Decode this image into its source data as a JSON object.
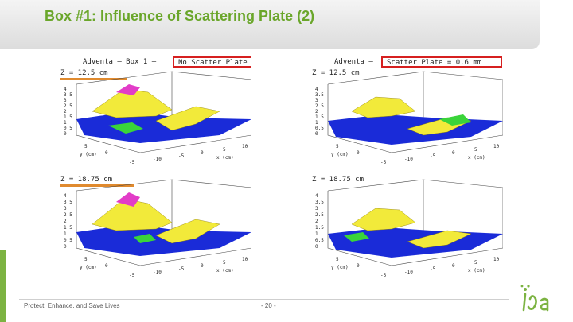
{
  "slide": {
    "title": "Box #1: Influence of Scattering Plate (2)",
    "footer_text": "Protect, Enhance, and Save Lives",
    "page_number": "- 20 -"
  },
  "panels": [
    {
      "header_prefix": "Adventa — Box 1 —",
      "header_highlight": "No Scatter Plate",
      "z_label": "Z = 12.5 cm"
    },
    {
      "header_prefix": "Adventa —",
      "header_highlight": "Scatter Plate = 0.6 mm",
      "z_label": "Z = 12.5 cm"
    },
    {
      "header_prefix": "",
      "header_highlight": "",
      "z_label": "Z = 18.75 cm"
    },
    {
      "header_prefix": "",
      "header_highlight": "",
      "z_label": "Z = 18.75 cm"
    }
  ],
  "axes": {
    "z_ticks": [
      "4",
      "3.5",
      "3",
      "2.5",
      "2",
      "1.5",
      "1",
      "0.5",
      "0"
    ],
    "x_ticks": [
      "-10",
      "-5",
      "0",
      "5",
      "10"
    ],
    "x_label": "x (cm)",
    "y_ticks": [
      "5",
      "0",
      "-5"
    ],
    "y_label": "y (cm)"
  },
  "colors": {
    "title_green": "#6aa62a",
    "highlight_box": "#d62020",
    "z_underline": "#e08a2e",
    "surface_blue": "#1a2bd8",
    "surface_yellow": "#f2ea3a",
    "surface_magenta": "#e23cc8",
    "surface_green": "#3ad43a"
  }
}
